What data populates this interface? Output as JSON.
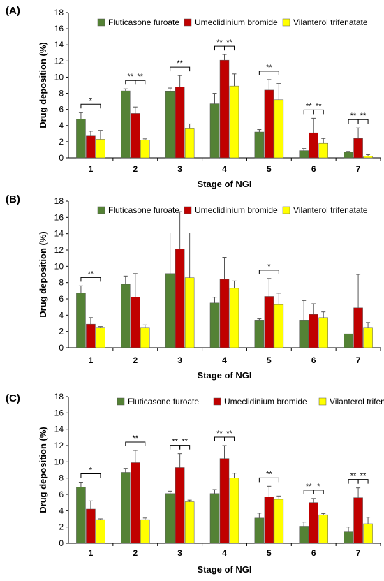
{
  "chart_data": [
    {
      "type": "bar",
      "panel_label": "(A)",
      "categories": [
        "1",
        "2",
        "3",
        "4",
        "5",
        "6",
        "7"
      ],
      "xlabel": "Stage of NGI",
      "ylabel": "Drug deposition (%)",
      "ylim": [
        0,
        18
      ],
      "yticks": [
        "0",
        "2",
        "4",
        "6",
        "8",
        "10",
        "12",
        "14",
        "16",
        "18"
      ],
      "legend_position": "top",
      "series": [
        {
          "name": "Fluticasone furoate",
          "color": "#548235",
          "values": [
            4.8,
            8.3,
            8.2,
            6.7,
            3.2,
            0.9,
            0.7
          ],
          "errors": [
            0.8,
            0.25,
            0.45,
            1.3,
            0.3,
            0.25,
            0.1
          ]
        },
        {
          "name": "Umeclidinium bromide",
          "color": "#c00000",
          "values": [
            2.7,
            5.5,
            8.8,
            12.1,
            8.4,
            3.1,
            2.4
          ],
          "errors": [
            0.6,
            0.8,
            1.4,
            0.7,
            1.3,
            1.8,
            1.3
          ]
        },
        {
          "name": "Vilanterol trifenatate",
          "color": "#ffff00",
          "values": [
            2.3,
            2.2,
            3.6,
            8.9,
            7.2,
            1.8,
            0.2
          ],
          "errors": [
            1.1,
            0.15,
            0.6,
            1.5,
            2.0,
            0.6,
            0.2
          ]
        }
      ],
      "significance": [
        {
          "stage": 1,
          "labels": [
            "*"
          ]
        },
        {
          "stage": 2,
          "labels": [
            "**",
            "**"
          ]
        },
        {
          "stage": 3,
          "labels": [
            "**"
          ]
        },
        {
          "stage": 4,
          "labels": [
            "**",
            "**"
          ]
        },
        {
          "stage": 5,
          "labels": [
            "**"
          ]
        },
        {
          "stage": 6,
          "labels": [
            "**",
            "**"
          ]
        },
        {
          "stage": 7,
          "labels": [
            "**",
            "**"
          ]
        }
      ]
    },
    {
      "type": "bar",
      "panel_label": "(B)",
      "categories": [
        "1",
        "2",
        "3",
        "4",
        "5",
        "6",
        "7"
      ],
      "xlabel": "Stage of NGI",
      "ylabel": "Drug deposition (%)",
      "ylim": [
        0,
        18
      ],
      "yticks": [
        "0",
        "2",
        "4",
        "6",
        "8",
        "10",
        "12",
        "14",
        "16",
        "18"
      ],
      "legend_position": "top",
      "series": [
        {
          "name": "Fluticasone furoate",
          "color": "#548235",
          "values": [
            6.7,
            7.8,
            9.1,
            5.5,
            3.4,
            3.4,
            1.7
          ],
          "errors": [
            0.9,
            1.0,
            5.0,
            0.7,
            0.15,
            2.4,
            0
          ]
        },
        {
          "name": "Umeclidinium bromide",
          "color": "#c00000",
          "values": [
            2.9,
            6.2,
            12.1,
            8.4,
            6.3,
            4.1,
            4.9
          ],
          "errors": [
            0.8,
            2.9,
            4.6,
            2.7,
            2.2,
            1.3,
            4.1
          ]
        },
        {
          "name": "Vilanterol trifenatate",
          "color": "#ffff00",
          "values": [
            2.5,
            2.5,
            8.6,
            7.3,
            5.3,
            3.7,
            2.5
          ],
          "errors": [
            0.1,
            0.3,
            5.5,
            0.9,
            1.4,
            0.7,
            0.6
          ]
        }
      ],
      "significance": [
        {
          "stage": 1,
          "labels": [
            "**"
          ]
        },
        {
          "stage": 5,
          "labels": [
            "*"
          ]
        }
      ]
    },
    {
      "type": "bar",
      "panel_label": "(C)",
      "categories": [
        "1",
        "2",
        "3",
        "4",
        "5",
        "6",
        "7"
      ],
      "xlabel": "Stage of NGI",
      "ylabel": "Drug deposition (%)",
      "ylim": [
        0,
        18
      ],
      "yticks": [
        "0",
        "2",
        "4",
        "6",
        "8",
        "10",
        "12",
        "14",
        "16",
        "18"
      ],
      "legend_position": "top",
      "series": [
        {
          "name": "Fluticasone furoate",
          "color": "#548235",
          "values": [
            6.9,
            8.7,
            6.1,
            6.1,
            3.1,
            2.1,
            1.4
          ],
          "errors": [
            0.6,
            0.5,
            0.3,
            0.5,
            0.6,
            0.5,
            0.6
          ]
        },
        {
          "name": "Umeclidinium bromide",
          "color": "#c00000",
          "values": [
            4.2,
            9.9,
            9.3,
            10.4,
            5.7,
            5.0,
            5.6
          ],
          "errors": [
            1.0,
            1.5,
            1.7,
            1.6,
            1.3,
            0.5,
            1.2
          ]
        },
        {
          "name": "Vilanterol trifenatate",
          "color": "#ffff00",
          "values": [
            2.9,
            2.9,
            5.1,
            8.0,
            5.4,
            3.5,
            2.4
          ],
          "errors": [
            0.1,
            0.2,
            0.2,
            0.6,
            0.4,
            0.15,
            0.8
          ]
        }
      ],
      "significance": [
        {
          "stage": 1,
          "labels": [
            "*"
          ]
        },
        {
          "stage": 2,
          "labels": [
            "**"
          ]
        },
        {
          "stage": 3,
          "labels": [
            "**",
            "**"
          ]
        },
        {
          "stage": 4,
          "labels": [
            "**",
            "**"
          ]
        },
        {
          "stage": 5,
          "labels": [
            "**"
          ]
        },
        {
          "stage": 6,
          "labels": [
            "**",
            "*"
          ]
        },
        {
          "stage": 7,
          "labels": [
            "**",
            "**"
          ]
        }
      ]
    }
  ]
}
